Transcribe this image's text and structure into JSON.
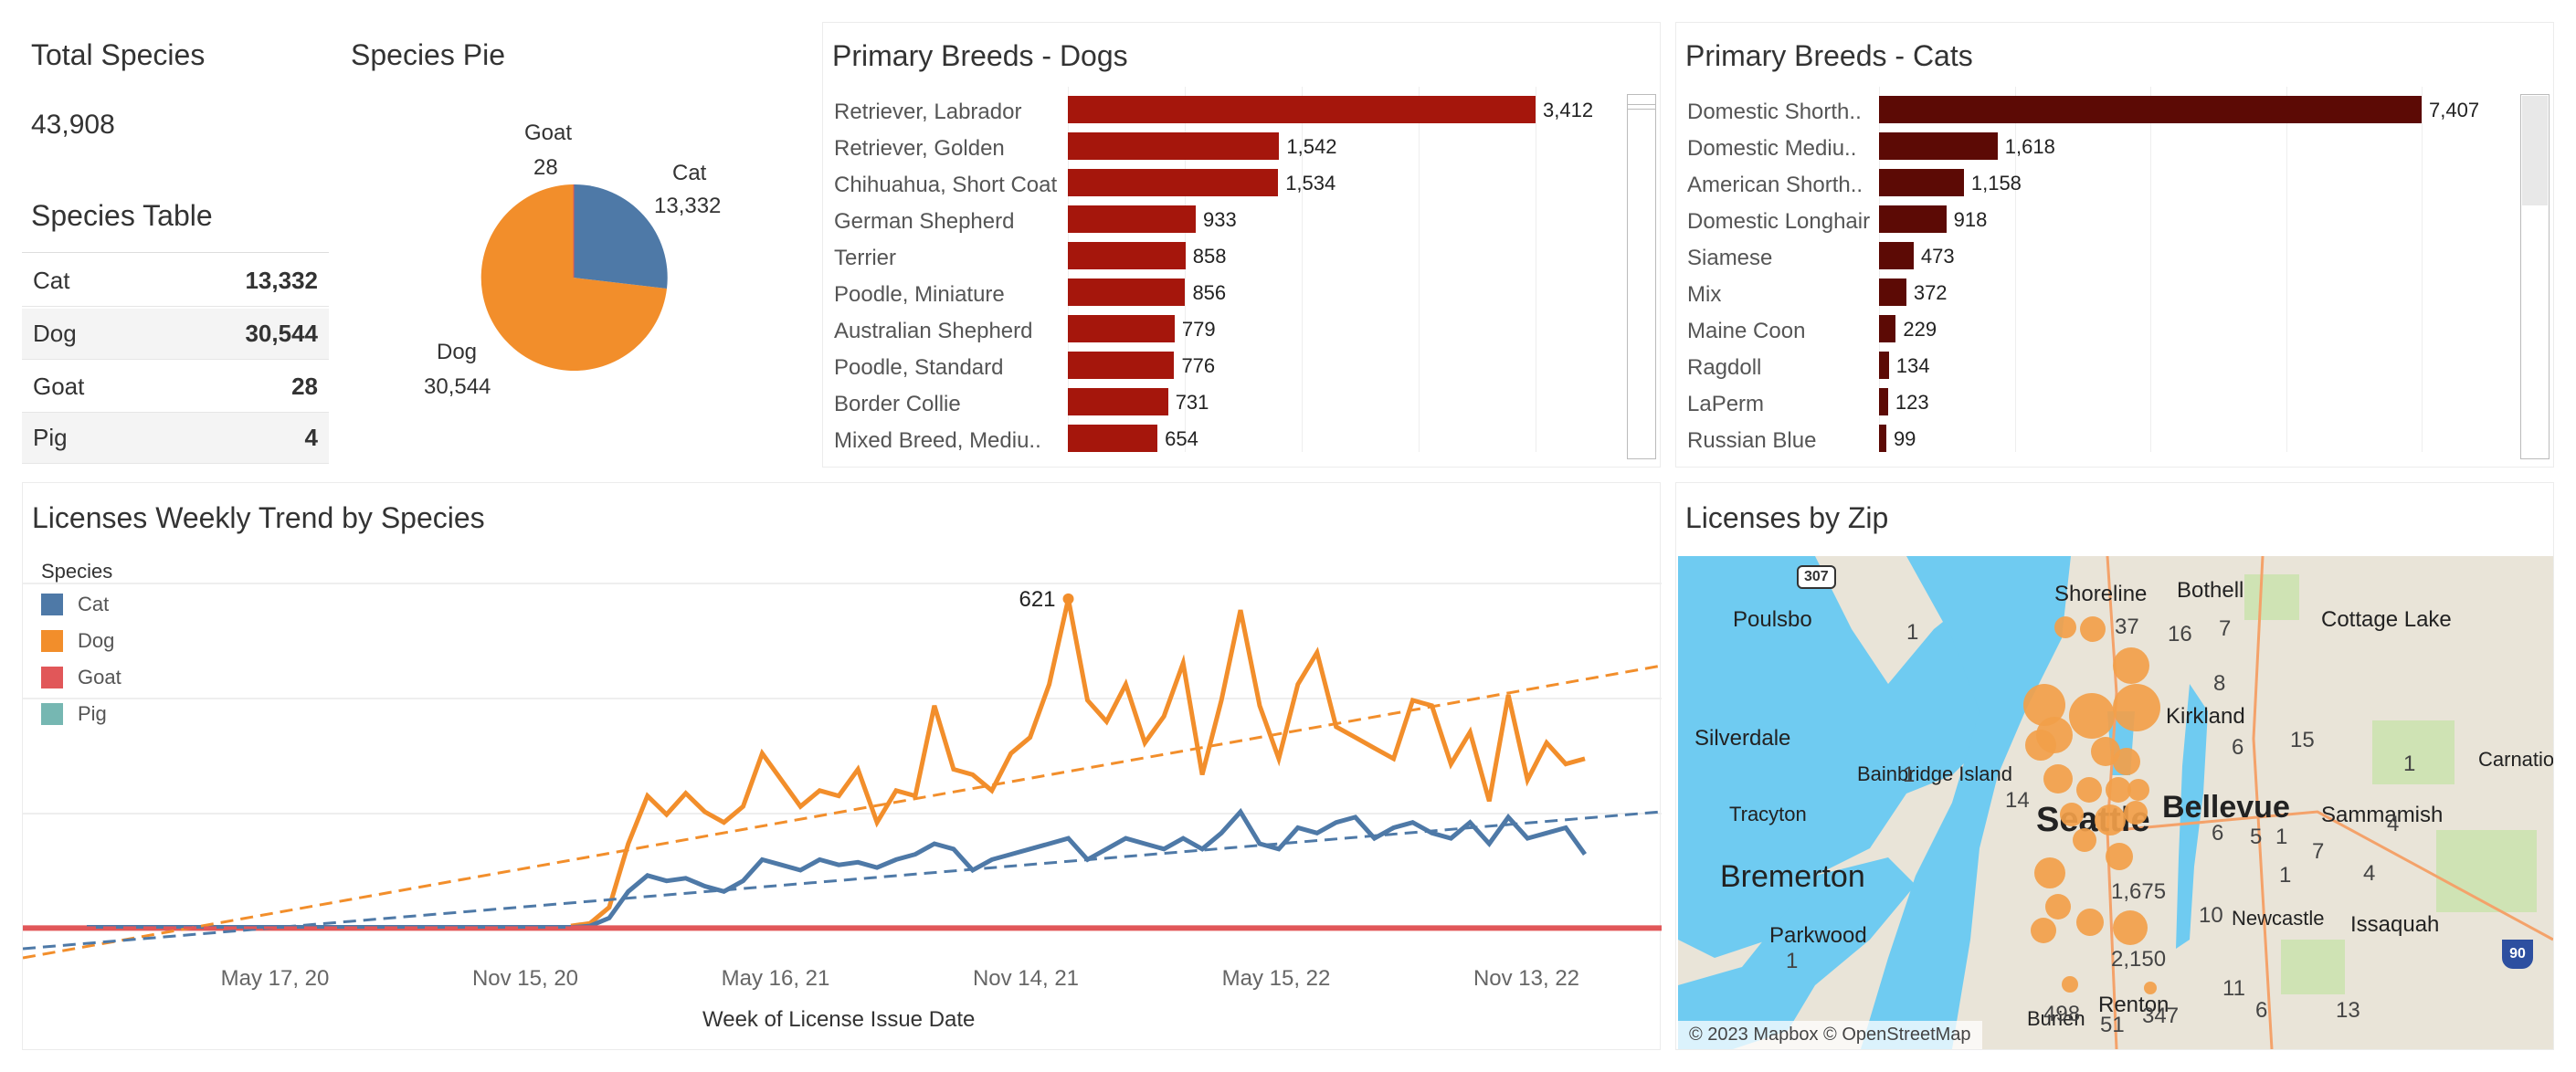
{
  "total_species": {
    "title": "Total Species",
    "value": "43,908"
  },
  "species_table": {
    "title": "Species Table",
    "rows": [
      {
        "name": "Cat",
        "value": "13,332"
      },
      {
        "name": "Dog",
        "value": "30,544"
      },
      {
        "name": "Goat",
        "value": "28"
      },
      {
        "name": "Pig",
        "value": "4"
      }
    ]
  },
  "species_pie": {
    "title": "Species Pie",
    "labels": [
      {
        "name": "Goat",
        "value": "28"
      },
      {
        "name": "Cat",
        "value": "13,332"
      },
      {
        "name": "Dog",
        "value": "30,544"
      }
    ]
  },
  "colors": {
    "cat": "#4e79a7",
    "dog": "#f28e2b",
    "goat": "#e15759",
    "pig": "#76b7b2",
    "dog_bar": "#a5160c",
    "cat_bar": "#5c0a05"
  },
  "dogs_breeds": {
    "title": "Primary Breeds - Dogs",
    "items": [
      {
        "label": "Retriever, Labrador",
        "value": 3412,
        "text": "3,412"
      },
      {
        "label": "Retriever, Golden",
        "value": 1542,
        "text": "1,542"
      },
      {
        "label": "Chihuahua, Short Coat",
        "value": 1534,
        "text": "1,534"
      },
      {
        "label": "German Shepherd",
        "value": 933,
        "text": "933"
      },
      {
        "label": "Terrier",
        "value": 858,
        "text": "858"
      },
      {
        "label": "Poodle, Miniature",
        "value": 856,
        "text": "856"
      },
      {
        "label": "Australian Shepherd",
        "value": 779,
        "text": "779"
      },
      {
        "label": "Poodle, Standard",
        "value": 776,
        "text": "776"
      },
      {
        "label": "Border Collie",
        "value": 731,
        "text": "731"
      },
      {
        "label": "Mixed Breed, Mediu..",
        "value": 654,
        "text": "654"
      }
    ]
  },
  "cats_breeds": {
    "title": "Primary Breeds - Cats",
    "items": [
      {
        "label": "Domestic Shorth..",
        "value": 7407,
        "text": "7,407"
      },
      {
        "label": "Domestic Mediu..",
        "value": 1618,
        "text": "1,618"
      },
      {
        "label": "American Shorth..",
        "value": 1158,
        "text": "1,158"
      },
      {
        "label": "Domestic Longhair",
        "value": 918,
        "text": "918"
      },
      {
        "label": "Siamese",
        "value": 473,
        "text": "473"
      },
      {
        "label": "Mix",
        "value": 372,
        "text": "372"
      },
      {
        "label": "Maine Coon",
        "value": 229,
        "text": "229"
      },
      {
        "label": "Ragdoll",
        "value": 134,
        "text": "134"
      },
      {
        "label": "LaPerm",
        "value": 123,
        "text": "123"
      },
      {
        "label": "Russian Blue",
        "value": 99,
        "text": "99"
      }
    ]
  },
  "trend": {
    "title": "Licenses Weekly Trend by Species",
    "legend_title": "Species",
    "legend": [
      "Cat",
      "Dog",
      "Goat",
      "Pig"
    ],
    "x_ticks": [
      "May 17, 20",
      "Nov 15, 20",
      "May 16, 21",
      "Nov 14, 21",
      "May 15, 22",
      "Nov 13, 22"
    ],
    "xlabel": "Week of License Issue Date",
    "peak_label": "621"
  },
  "chart_data": {
    "type": "line",
    "title": "Licenses Weekly Trend by Species",
    "xlabel": "Week of License Issue Date",
    "ylabel": "",
    "x_ticks": [
      "May 17, 20",
      "Nov 15, 20",
      "May 16, 21",
      "Nov 14, 21",
      "May 15, 22",
      "Nov 13, 22"
    ],
    "ylim": [
      0,
      650
    ],
    "series": [
      {
        "name": "Dog",
        "values": [
          5,
          10,
          40,
          160,
          250,
          215,
          255,
          220,
          200,
          230,
          330,
          280,
          230,
          260,
          250,
          300,
          200,
          260,
          250,
          420,
          300,
          290,
          260,
          330,
          360,
          460,
          621,
          430,
          390,
          460,
          350,
          400,
          500,
          290,
          430,
          600,
          420,
          320,
          460,
          520,
          380,
          360,
          340,
          320,
          430,
          420,
          310,
          370,
          240,
          440,
          280,
          350,
          310,
          320
        ]
      },
      {
        "name": "Cat",
        "values": [
          2,
          5,
          20,
          70,
          100,
          90,
          95,
          80,
          70,
          90,
          130,
          120,
          110,
          130,
          120,
          125,
          115,
          130,
          140,
          160,
          150,
          110,
          130,
          140,
          150,
          160,
          170,
          130,
          150,
          170,
          160,
          150,
          170,
          150,
          180,
          220,
          160,
          150,
          190,
          180,
          200,
          210,
          170,
          190,
          200,
          180,
          170,
          200,
          160,
          210,
          170,
          180,
          190,
          140
        ]
      },
      {
        "name": "Goat",
        "values": [
          1,
          1,
          1,
          1,
          1,
          1,
          1,
          1,
          1,
          1,
          1,
          1,
          1,
          1,
          1,
          1,
          1,
          1,
          1,
          1,
          1,
          1,
          1,
          1,
          1,
          1,
          1,
          1,
          1,
          1,
          1,
          1,
          1,
          1,
          1,
          1,
          1,
          1,
          1,
          1,
          1,
          1,
          1,
          1,
          1,
          1,
          1,
          1,
          1,
          1,
          1,
          1,
          1,
          1
        ]
      },
      {
        "name": "Pig",
        "values": [
          1,
          1,
          1,
          1
        ]
      }
    ],
    "annotations": [
      "621"
    ]
  },
  "map": {
    "title": "Licenses by Zip",
    "attribution": "© 2023 Mapbox © OpenStreetMap",
    "cities": [
      "Shoreline",
      "Bothell",
      "Poulsbo",
      "Cottage Lake",
      "Kirkland",
      "Silverdale",
      "Bainbridge Island",
      "Carnation",
      "Tracyton",
      "Seattle",
      "Bellevue",
      "Sammamish",
      "Bremerton",
      "Newcastle",
      "Issaquah",
      "Parkwood",
      "Renton",
      "Burien"
    ],
    "numbers": [
      "1",
      "37",
      "16",
      "7",
      "8",
      "15",
      "6",
      "1",
      "14",
      "4",
      "6",
      "5",
      "1",
      "7",
      "4",
      "1",
      "1,675",
      "10",
      "2,150",
      "11",
      "6",
      "13",
      "498",
      "51",
      "347",
      "1",
      "1"
    ],
    "shields": [
      "307",
      "90"
    ]
  }
}
